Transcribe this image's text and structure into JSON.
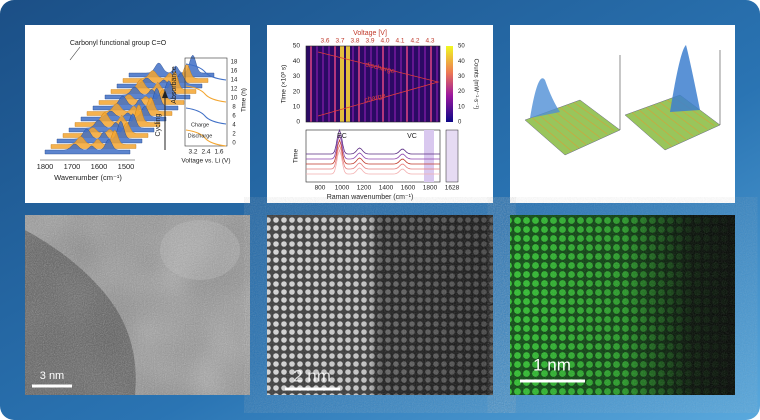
{
  "ftir": {
    "annotation": "Carbonyl functional group C=O",
    "x_label": "Wavenumber (cm⁻¹)",
    "x_ticks": [
      "1800",
      "1700",
      "1600",
      "1500"
    ],
    "y_label": "Absorbance",
    "arrow_label": "Cycling",
    "inset_y_label": "Time (h)",
    "inset_y_ticks": [
      "18",
      "16",
      "14",
      "12",
      "10",
      "8",
      "6",
      "4",
      "2",
      "0"
    ],
    "inset_x_label": "Voltage vs. Li (V)",
    "inset_x_ticks": [
      "3.2",
      "2.4",
      "1.6"
    ],
    "inset_labels": [
      "Charge",
      "Discharge"
    ]
  },
  "raman": {
    "top_x_label": "Voltage [V]",
    "top_x_ticks": [
      "3.6",
      "3.7",
      "3.8",
      "3.9",
      "4.0",
      "4.1",
      "4.2",
      "4.3"
    ],
    "y_label": "Time (×10³ s)",
    "y_ticks": [
      "0",
      "10",
      "20",
      "30",
      "40",
      "50"
    ],
    "band_labels": [
      "discharge",
      "charge"
    ],
    "colorbar_label": "Counts (mW⁻¹·s⁻¹)",
    "colorbar_ticks": [
      "0",
      "10",
      "20",
      "30",
      "40",
      "50"
    ],
    "peak_labels": [
      "EC",
      "VC"
    ],
    "lower_y_label": "Time",
    "x_label": "Raman wavenumber (cm⁻¹)",
    "x_ticks": [
      "800",
      "1000",
      "1200",
      "1400",
      "1600",
      "1800"
    ],
    "side_tick": "1628"
  },
  "images": [
    {
      "scale": "3 nm"
    },
    {
      "scale": "2 nm"
    },
    {
      "scale": "1 nm"
    }
  ]
}
